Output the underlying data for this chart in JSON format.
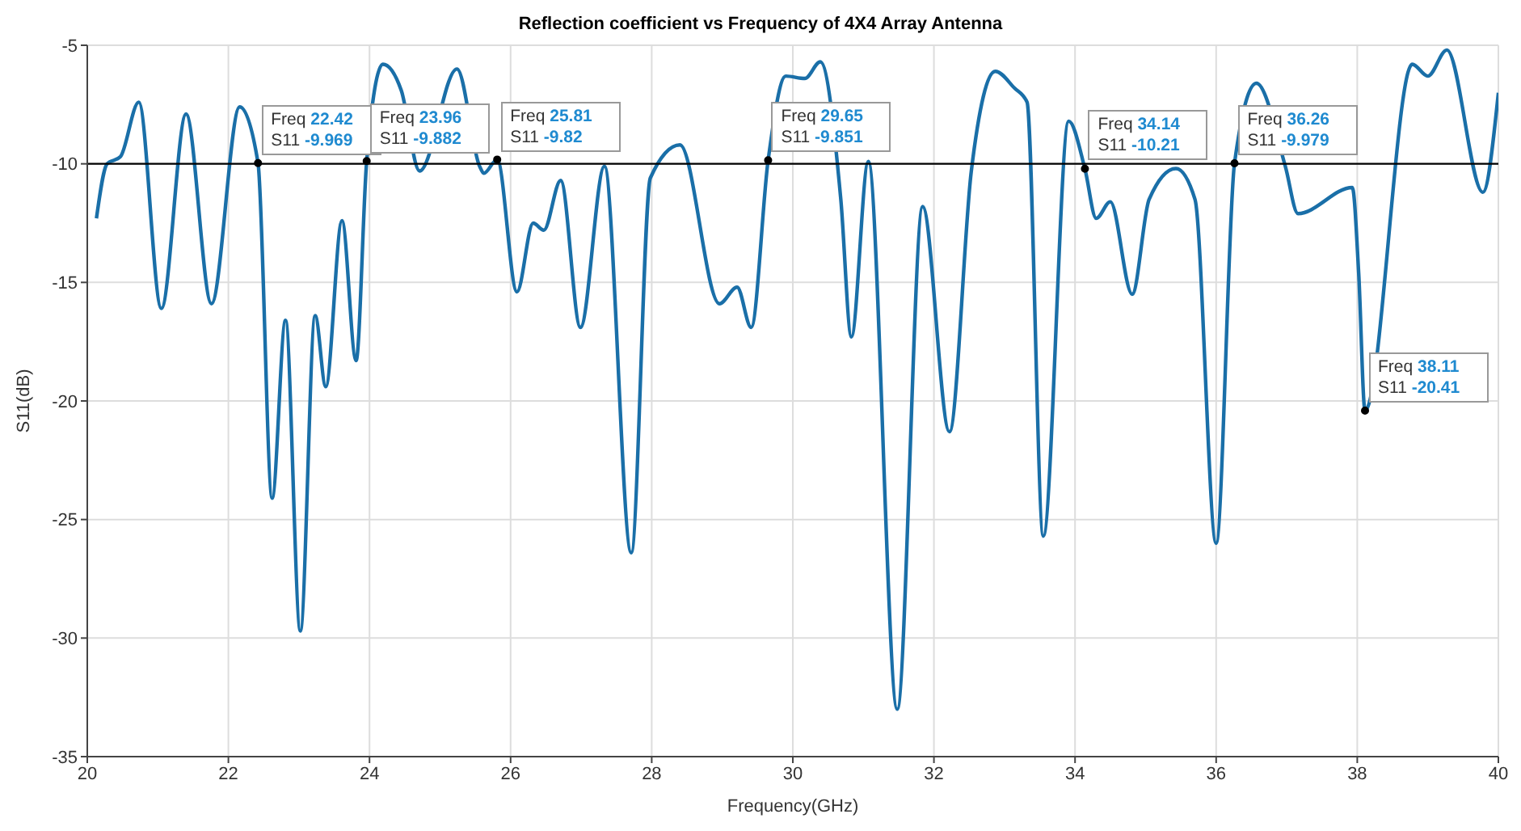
{
  "chart_data": {
    "type": "line",
    "title": "Reflection coefficient vs Frequency of 4X4 Array Antenna",
    "xlabel": "Frequency(GHz)",
    "ylabel": "S11(dB)",
    "x": [
      20.13,
      20.28,
      20.47,
      20.73,
      21.05,
      21.4,
      21.76,
      22.16,
      22.42,
      22.62,
      22.81,
      23.02,
      23.23,
      23.38,
      23.61,
      23.81,
      23.96,
      24.19,
      24.45,
      24.71,
      25.24,
      25.56,
      25.62,
      25.81,
      26.09,
      26.32,
      26.47,
      26.71,
      26.99,
      27.33,
      27.71,
      27.98,
      28.4,
      28.96,
      29.21,
      29.41,
      29.65,
      29.9,
      30.17,
      30.39,
      30.68,
      30.83,
      31.07,
      31.48,
      31.84,
      32.22,
      32.53,
      32.87,
      33.14,
      33.32,
      33.55,
      33.91,
      34.14,
      34.3,
      34.5,
      34.81,
      35.05,
      35.43,
      35.7,
      36.0,
      36.26,
      36.57,
      36.98,
      37.16,
      37.93,
      38.02,
      38.11,
      38.78,
      39.0,
      39.27,
      39.78,
      40.0
    ],
    "series": [
      {
        "color": "#1a6fa8",
        "values": [
          -12.3,
          -10,
          -9.7,
          -7.4,
          -16.1,
          -7.9,
          -15.9,
          -7.6,
          -9.969,
          -24.1,
          -16.6,
          -29.7,
          -16.4,
          -19.4,
          -12.4,
          -18.3,
          -9.882,
          -5.8,
          -6.9,
          -10.3,
          -6.0,
          -10.1,
          -10.4,
          -9.82,
          -15.4,
          -12.5,
          -12.8,
          -10.7,
          -16.9,
          -10.1,
          -26.4,
          -10.6,
          -9.2,
          -15.9,
          -15.2,
          -16.9,
          -9.851,
          -6.3,
          -6.4,
          -5.7,
          -11.5,
          -17.3,
          -9.9,
          -33.0,
          -11.8,
          -21.3,
          -10.3,
          -6.1,
          -6.8,
          -7.4,
          -25.7,
          -8.2,
          -10.21,
          -12.3,
          -11.6,
          -15.5,
          -11.5,
          -10.2,
          -11.5,
          -26.0,
          -9.979,
          -6.6,
          -10.1,
          -12.1,
          -11.0,
          -14.6,
          -20.41,
          -5.8,
          -6.3,
          -5.2,
          -11.2,
          -7.0
        ]
      }
    ],
    "xlim": [
      20,
      40
    ],
    "xticks": [
      20,
      22,
      24,
      26,
      28,
      30,
      32,
      34,
      36,
      38,
      40
    ],
    "ylim": [
      -35,
      -5
    ],
    "yticks": [
      -35,
      -30,
      -25,
      -20,
      -15,
      -10,
      -5
    ],
    "grid": true,
    "marker": "none",
    "line_style": "solid",
    "ref_lines": [
      {
        "axis": "y",
        "value": -10,
        "color": "#000000"
      }
    ],
    "annotations": [
      {
        "text": "Freq 22.42\nS11 -9.969",
        "x": 22.42,
        "y": -9.969
      },
      {
        "text": "Freq 23.96\nS11 -9.882",
        "x": 23.96,
        "y": -9.882
      },
      {
        "text": "Freq 25.81\nS11 -9.82",
        "x": 25.81,
        "y": -9.82
      },
      {
        "text": "Freq 29.65\nS11 -9.851",
        "x": 29.65,
        "y": -9.851
      },
      {
        "text": "Freq 34.14\nS11 -10.21",
        "x": 34.14,
        "y": -10.21
      },
      {
        "text": "Freq 36.26\nS11 -9.979",
        "x": 36.26,
        "y": -9.979
      },
      {
        "text": "Freq 38.11\nS11 -20.41",
        "x": 38.11,
        "y": -20.41
      }
    ]
  }
}
